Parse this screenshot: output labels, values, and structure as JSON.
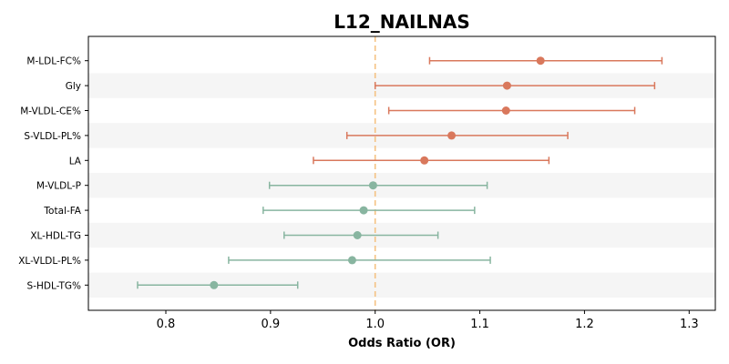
{
  "chart_data": {
    "type": "scatter",
    "title": "L12_NAILNAS",
    "xlabel": "Odds Ratio (OR)",
    "ylabel": "",
    "xlim": [
      0.726,
      1.325
    ],
    "xticks": [
      0.8,
      0.9,
      1.0,
      1.1,
      1.2,
      1.3
    ],
    "xtick_labels": [
      "0.8",
      "0.9",
      "1.0",
      "1.1",
      "1.2",
      "1.3"
    ],
    "reference_line": {
      "x": 1.0,
      "style": "dashed",
      "color": "#f5c283"
    },
    "grid": false,
    "alternating_row_shading": true,
    "colors": {
      "positive": "#d9785c",
      "negative": "#88b5a0",
      "shading": "#f5f5f5"
    },
    "rows": [
      {
        "label": "M-LDL-FC%",
        "or": 1.158,
        "lower": 1.052,
        "upper": 1.274,
        "direction": "positive"
      },
      {
        "label": "Gly",
        "or": 1.126,
        "lower": 1.0,
        "upper": 1.267,
        "direction": "positive"
      },
      {
        "label": "M-VLDL-CE%",
        "or": 1.125,
        "lower": 1.013,
        "upper": 1.248,
        "direction": "positive"
      },
      {
        "label": "S-VLDL-PL%",
        "or": 1.073,
        "lower": 0.973,
        "upper": 1.184,
        "direction": "positive"
      },
      {
        "label": "LA",
        "or": 1.047,
        "lower": 0.941,
        "upper": 1.166,
        "direction": "positive"
      },
      {
        "label": "M-VLDL-P",
        "or": 0.998,
        "lower": 0.899,
        "upper": 1.107,
        "direction": "negative"
      },
      {
        "label": "Total-FA",
        "or": 0.989,
        "lower": 0.893,
        "upper": 1.095,
        "direction": "negative"
      },
      {
        "label": "XL-HDL-TG",
        "or": 0.983,
        "lower": 0.913,
        "upper": 1.06,
        "direction": "negative"
      },
      {
        "label": "XL-VLDL-PL%",
        "or": 0.978,
        "lower": 0.86,
        "upper": 1.11,
        "direction": "negative"
      },
      {
        "label": "S-HDL-TG%",
        "or": 0.846,
        "lower": 0.773,
        "upper": 0.926,
        "direction": "negative"
      }
    ]
  }
}
